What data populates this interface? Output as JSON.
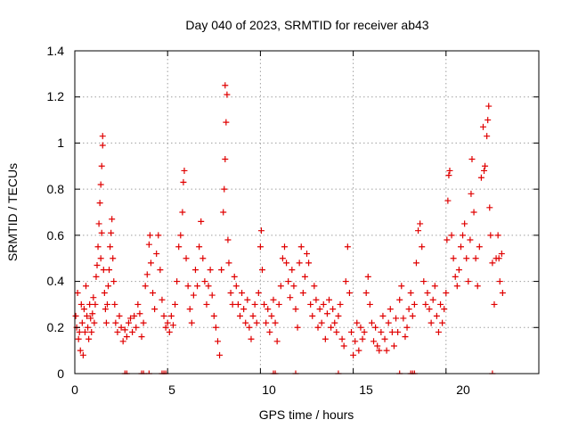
{
  "chart_data": {
    "type": "scatter",
    "title": "Day 040 of 2023, SRMTID for receiver ab43",
    "xlabel": "GPS time / hours",
    "ylabel": "SRMTID / TECUs",
    "xlim": [
      0,
      25
    ],
    "ylim": [
      0,
      1.4
    ],
    "xticks": [
      0,
      5,
      10,
      15,
      20
    ],
    "yticks": [
      0,
      0.2,
      0.4,
      0.6,
      0.8,
      1,
      1.2,
      1.4
    ],
    "xtick_labels": [
      "0",
      "5",
      "10",
      "15",
      "20"
    ],
    "ytick_labels": [
      "0",
      "0.2",
      "0.4",
      "0.6",
      "0.8",
      "1",
      "1.2",
      "1.4"
    ],
    "grid": true,
    "marker": "plus",
    "series": [
      {
        "name": "SRMTID",
        "color": "#e00000",
        "points": [
          [
            0.05,
            0.25
          ],
          [
            0.1,
            0.2
          ],
          [
            0.15,
            0.35
          ],
          [
            0.2,
            0.15
          ],
          [
            0.25,
            0.18
          ],
          [
            0.3,
            0.1
          ],
          [
            0.35,
            0.3
          ],
          [
            0.4,
            0.22
          ],
          [
            0.45,
            0.08
          ],
          [
            0.5,
            0.28
          ],
          [
            0.55,
            0.18
          ],
          [
            0.6,
            0.38
          ],
          [
            0.65,
            0.25
          ],
          [
            0.7,
            0.2
          ],
          [
            0.75,
            0.15
          ],
          [
            0.8,
            0.3
          ],
          [
            0.85,
            0.24
          ],
          [
            0.9,
            0.18
          ],
          [
            0.95,
            0.26
          ],
          [
            1.0,
            0.33
          ],
          [
            1.05,
            0.22
          ],
          [
            1.1,
            0.3
          ],
          [
            1.15,
            0.42
          ],
          [
            1.2,
            0.47
          ],
          [
            1.25,
            0.55
          ],
          [
            1.3,
            0.65
          ],
          [
            1.35,
            0.74
          ],
          [
            1.4,
            0.82
          ],
          [
            1.45,
            0.9
          ],
          [
            1.5,
            1.03
          ],
          [
            1.5,
            0.99
          ],
          [
            1.45,
            0.61
          ],
          [
            1.4,
            0.5
          ],
          [
            1.55,
            0.45
          ],
          [
            1.6,
            0.35
          ],
          [
            1.65,
            0.28
          ],
          [
            1.7,
            0.22
          ],
          [
            1.75,
            0.3
          ],
          [
            1.8,
            0.38
          ],
          [
            1.85,
            0.45
          ],
          [
            1.9,
            0.55
          ],
          [
            1.95,
            0.61
          ],
          [
            2.0,
            0.67
          ],
          [
            2.05,
            0.5
          ],
          [
            2.1,
            0.4
          ],
          [
            2.15,
            0.3
          ],
          [
            2.2,
            0.22
          ],
          [
            2.3,
            0.18
          ],
          [
            2.4,
            0.25
          ],
          [
            2.5,
            0.2
          ],
          [
            2.6,
            0.14
          ],
          [
            2.7,
            0.19
          ],
          [
            2.8,
            0.16
          ],
          [
            2.9,
            0.22
          ],
          [
            3.0,
            0.24
          ],
          [
            3.1,
            0.18
          ],
          [
            3.2,
            0.25
          ],
          [
            3.3,
            0.2
          ],
          [
            3.4,
            0.3
          ],
          [
            3.5,
            0.26
          ],
          [
            3.6,
            0.16
          ],
          [
            3.7,
            0.22
          ],
          [
            3.8,
            0.38
          ],
          [
            3.9,
            0.43
          ],
          [
            4.0,
            0.56
          ],
          [
            4.05,
            0.6
          ],
          [
            4.1,
            0.48
          ],
          [
            4.2,
            0.35
          ],
          [
            4.3,
            0.28
          ],
          [
            4.4,
            0.52
          ],
          [
            4.5,
            0.6
          ],
          [
            4.6,
            0.45
          ],
          [
            4.7,
            0.32
          ],
          [
            4.8,
            0.25
          ],
          [
            4.9,
            0.2
          ],
          [
            5.0,
            0.22
          ],
          [
            5.1,
            0.18
          ],
          [
            5.2,
            0.25
          ],
          [
            5.3,
            0.21
          ],
          [
            5.4,
            0.3
          ],
          [
            5.5,
            0.4
          ],
          [
            5.6,
            0.55
          ],
          [
            5.7,
            0.6
          ],
          [
            5.8,
            0.7
          ],
          [
            5.85,
            0.83
          ],
          [
            5.9,
            0.88
          ],
          [
            6.0,
            0.5
          ],
          [
            6.1,
            0.38
          ],
          [
            6.2,
            0.28
          ],
          [
            6.3,
            0.22
          ],
          [
            6.4,
            0.34
          ],
          [
            6.5,
            0.45
          ],
          [
            6.6,
            0.38
          ],
          [
            6.7,
            0.55
          ],
          [
            6.8,
            0.66
          ],
          [
            6.9,
            0.5
          ],
          [
            7.0,
            0.4
          ],
          [
            7.1,
            0.3
          ],
          [
            7.2,
            0.38
          ],
          [
            7.3,
            0.45
          ],
          [
            7.4,
            0.34
          ],
          [
            7.5,
            0.25
          ],
          [
            7.6,
            0.2
          ],
          [
            7.7,
            0.14
          ],
          [
            7.8,
            0.08
          ],
          [
            7.9,
            0.45
          ],
          [
            8.0,
            0.7
          ],
          [
            8.05,
            0.8
          ],
          [
            8.1,
            0.93
          ],
          [
            8.15,
            1.09
          ],
          [
            8.1,
            1.25
          ],
          [
            8.2,
            1.21
          ],
          [
            8.25,
            0.58
          ],
          [
            8.3,
            0.48
          ],
          [
            8.4,
            0.35
          ],
          [
            8.5,
            0.3
          ],
          [
            8.6,
            0.42
          ],
          [
            8.7,
            0.38
          ],
          [
            8.8,
            0.3
          ],
          [
            8.9,
            0.25
          ],
          [
            9.0,
            0.35
          ],
          [
            9.1,
            0.28
          ],
          [
            9.2,
            0.22
          ],
          [
            9.3,
            0.32
          ],
          [
            9.4,
            0.2
          ],
          [
            9.5,
            0.15
          ],
          [
            9.6,
            0.25
          ],
          [
            9.7,
            0.3
          ],
          [
            9.8,
            0.22
          ],
          [
            9.9,
            0.35
          ],
          [
            10.0,
            0.55
          ],
          [
            10.05,
            0.62
          ],
          [
            10.1,
            0.45
          ],
          [
            10.2,
            0.3
          ],
          [
            10.3,
            0.22
          ],
          [
            10.4,
            0.28
          ],
          [
            10.5,
            0.18
          ],
          [
            10.6,
            0.25
          ],
          [
            10.7,
            0.32
          ],
          [
            10.8,
            0.22
          ],
          [
            10.9,
            0.14
          ],
          [
            11.0,
            0.3
          ],
          [
            11.1,
            0.38
          ],
          [
            11.2,
            0.5
          ],
          [
            11.3,
            0.55
          ],
          [
            11.4,
            0.48
          ],
          [
            11.5,
            0.4
          ],
          [
            11.6,
            0.33
          ],
          [
            11.7,
            0.45
          ],
          [
            11.8,
            0.38
          ],
          [
            11.9,
            0.28
          ],
          [
            12.0,
            0.2
          ],
          [
            12.1,
            0.48
          ],
          [
            12.2,
            0.55
          ],
          [
            12.3,
            0.35
          ],
          [
            12.4,
            0.42
          ],
          [
            12.5,
            0.52
          ],
          [
            12.6,
            0.48
          ],
          [
            12.7,
            0.3
          ],
          [
            12.8,
            0.25
          ],
          [
            12.9,
            0.38
          ],
          [
            13.0,
            0.32
          ],
          [
            13.1,
            0.2
          ],
          [
            13.2,
            0.28
          ],
          [
            13.3,
            0.22
          ],
          [
            13.4,
            0.3
          ],
          [
            13.5,
            0.15
          ],
          [
            13.6,
            0.26
          ],
          [
            13.7,
            0.32
          ],
          [
            13.8,
            0.2
          ],
          [
            13.9,
            0.28
          ],
          [
            14.0,
            0.22
          ],
          [
            14.1,
            0.18
          ],
          [
            14.2,
            0.25
          ],
          [
            14.3,
            0.3
          ],
          [
            14.4,
            0.15
          ],
          [
            14.5,
            0.12
          ],
          [
            14.6,
            0.4
          ],
          [
            14.7,
            0.55
          ],
          [
            14.8,
            0.35
          ],
          [
            14.9,
            0.18
          ],
          [
            15.0,
            0.08
          ],
          [
            15.1,
            0.14
          ],
          [
            15.2,
            0.22
          ],
          [
            15.3,
            0.1
          ],
          [
            15.4,
            0.2
          ],
          [
            15.5,
            0.15
          ],
          [
            15.6,
            0.18
          ],
          [
            15.7,
            0.35
          ],
          [
            15.8,
            0.42
          ],
          [
            15.9,
            0.3
          ],
          [
            16.0,
            0.22
          ],
          [
            16.1,
            0.14
          ],
          [
            16.2,
            0.2
          ],
          [
            16.3,
            0.12
          ],
          [
            16.4,
            0.1
          ],
          [
            16.5,
            0.18
          ],
          [
            16.6,
            0.25
          ],
          [
            16.7,
            0.15
          ],
          [
            16.8,
            0.1
          ],
          [
            16.9,
            0.22
          ],
          [
            17.0,
            0.28
          ],
          [
            17.1,
            0.18
          ],
          [
            17.2,
            0.12
          ],
          [
            17.3,
            0.24
          ],
          [
            17.4,
            0.18
          ],
          [
            17.5,
            0.32
          ],
          [
            17.6,
            0.38
          ],
          [
            17.7,
            0.24
          ],
          [
            17.8,
            0.16
          ],
          [
            17.9,
            0.2
          ],
          [
            18.0,
            0.28
          ],
          [
            18.1,
            0.35
          ],
          [
            18.2,
            0.25
          ],
          [
            18.3,
            0.3
          ],
          [
            18.4,
            0.48
          ],
          [
            18.5,
            0.62
          ],
          [
            18.6,
            0.65
          ],
          [
            18.7,
            0.55
          ],
          [
            18.8,
            0.4
          ],
          [
            18.9,
            0.3
          ],
          [
            19.0,
            0.35
          ],
          [
            19.1,
            0.28
          ],
          [
            19.2,
            0.22
          ],
          [
            19.3,
            0.32
          ],
          [
            19.4,
            0.38
          ],
          [
            19.5,
            0.25
          ],
          [
            19.6,
            0.18
          ],
          [
            19.7,
            0.3
          ],
          [
            19.8,
            0.22
          ],
          [
            19.9,
            0.28
          ],
          [
            20.0,
            0.35
          ],
          [
            20.05,
            0.58
          ],
          [
            20.1,
            0.75
          ],
          [
            20.15,
            0.86
          ],
          [
            20.2,
            0.88
          ],
          [
            20.3,
            0.6
          ],
          [
            20.4,
            0.5
          ],
          [
            20.5,
            0.42
          ],
          [
            20.6,
            0.38
          ],
          [
            20.7,
            0.45
          ],
          [
            20.8,
            0.55
          ],
          [
            20.9,
            0.6
          ],
          [
            21.0,
            0.65
          ],
          [
            21.1,
            0.5
          ],
          [
            21.2,
            0.4
          ],
          [
            21.3,
            0.58
          ],
          [
            21.35,
            0.78
          ],
          [
            21.4,
            0.93
          ],
          [
            21.5,
            0.7
          ],
          [
            21.6,
            0.5
          ],
          [
            21.7,
            0.38
          ],
          [
            21.8,
            0.55
          ],
          [
            21.9,
            0.85
          ],
          [
            22.0,
            1.07
          ],
          [
            22.05,
            0.88
          ],
          [
            22.1,
            0.9
          ],
          [
            22.2,
            1.03
          ],
          [
            22.25,
            1.1
          ],
          [
            22.3,
            1.16
          ],
          [
            22.35,
            0.72
          ],
          [
            22.4,
            0.6
          ],
          [
            22.5,
            0.48
          ],
          [
            22.6,
            0.3
          ],
          [
            22.7,
            0.5
          ],
          [
            22.8,
            0.6
          ],
          [
            22.85,
            0.5
          ],
          [
            22.9,
            0.4
          ],
          [
            23.0,
            0.52
          ],
          [
            23.05,
            0.35
          ]
        ]
      }
    ],
    "base_marks_x": [
      2.7,
      2.8,
      3.6,
      3.7,
      4.0,
      4.7,
      4.8,
      4.9,
      10.7,
      10.8,
      11.9,
      14.2,
      17.5,
      18.1,
      18.2,
      18.3,
      22.5
    ]
  }
}
